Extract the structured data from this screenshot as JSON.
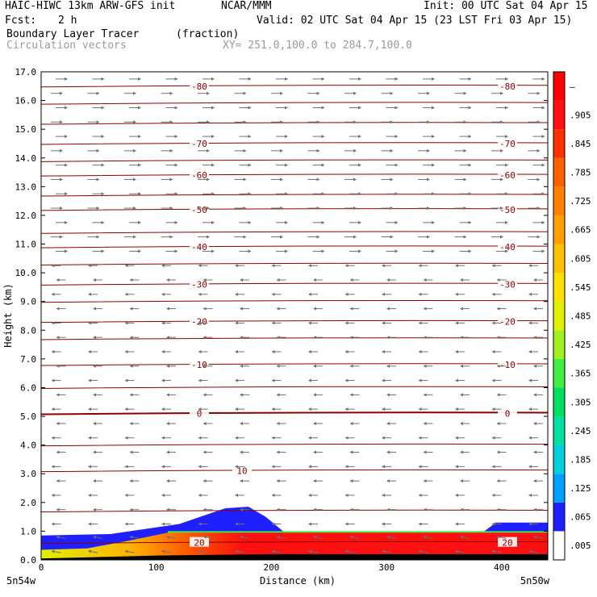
{
  "header": {
    "model": "HAIC-HIWC 13km ARW-GFS init",
    "org": "NCAR/MMM",
    "init": "Init: 00 UTC Sat 04 Apr 15",
    "fcst_label": "Fcst:",
    "fcst_value": "2 h",
    "valid": "Valid: 02 UTC Sat 04 Apr 15 (23 LST Fri 03 Apr 15)",
    "field": "Boundary Layer Tracer",
    "field_units": "(fraction)",
    "overlay": "Circulation vectors",
    "cross_section": "XY= 251.0,100.0 to 284.7,100.0"
  },
  "chart_data": {
    "type": "heatmap",
    "xlabel": "Distance (km)",
    "ylabel": "Height (km)",
    "xlim": [
      0,
      440
    ],
    "ylim": [
      0,
      17
    ],
    "x_ticks": [
      0,
      100,
      200,
      300,
      400
    ],
    "y_ticks": [
      "0.0",
      "1.0",
      "2.0",
      "3.0",
      "4.0",
      "5.0",
      "6.0",
      "7.0",
      "8.0",
      "9.0",
      "10.0",
      "11.0",
      "12.0",
      "13.0",
      "14.0",
      "15.0",
      "16.0",
      "17.0"
    ],
    "x_end_labels": {
      "left": "5n54w",
      "right": "5n50w"
    },
    "colorbar": {
      "labels": [
        ".005",
        ".065",
        ".125",
        ".185",
        ".245",
        ".305",
        ".365",
        ".425",
        ".485",
        ".545",
        ".605",
        ".665",
        ".725",
        ".785",
        ".845",
        ".905",
        "–"
      ],
      "colors": [
        "#ffffff",
        "#2020ff",
        "#00a0ff",
        "#00d0e0",
        "#00e0a0",
        "#00e060",
        "#40f040",
        "#a0f020",
        "#e0f000",
        "#ffe000",
        "#ffc000",
        "#ffa000",
        "#ff8000",
        "#ff6000",
        "#ff3000",
        "#ff1010",
        "#ff0000"
      ]
    },
    "contours": [
      {
        "label": "-80",
        "height_km": 16.5
      },
      {
        "label": "-70",
        "height_km": 14.5
      },
      {
        "label": "-60",
        "height_km": 13.4
      },
      {
        "label": "-50",
        "height_km": 12.2
      },
      {
        "label": "-40",
        "height_km": 10.9
      },
      {
        "label": "-30",
        "height_km": 9.6
      },
      {
        "label": "-20",
        "height_km": 8.3
      },
      {
        "label": "-10",
        "height_km": 6.8
      },
      {
        "label": "0",
        "height_km": 5.1
      },
      {
        "label": "10",
        "height_km": 3.1
      },
      {
        "label": "20",
        "height_km": 0.6
      }
    ],
    "unlabeled_isotherm_heights_km": [
      15.9,
      15.2,
      13.9,
      12.7,
      11.4,
      10.3,
      9.0,
      7.7,
      6.0,
      4.0,
      1.7
    ],
    "terrain_km": [
      [
        0,
        0.05
      ],
      [
        50,
        0.1
      ],
      [
        100,
        0.15
      ],
      [
        200,
        0.2
      ],
      [
        300,
        0.2
      ],
      [
        440,
        0.2
      ]
    ],
    "tracer_fields": [
      {
        "name_color": "#ff0000",
        "top_km": [
          [
            0,
            0.35
          ],
          [
            40,
            0.4
          ],
          [
            80,
            0.7
          ],
          [
            110,
            0.95
          ],
          [
            200,
            0.95
          ],
          [
            440,
            0.95
          ]
        ]
      },
      {
        "name_color": "#40f040",
        "top_km": [
          [
            110,
            1.0
          ],
          [
            440,
            1.0
          ]
        ]
      },
      {
        "name_color": "#2020ff",
        "top_km": [
          [
            0,
            0.85
          ],
          [
            60,
            0.9
          ],
          [
            120,
            1.25
          ],
          [
            160,
            1.8
          ],
          [
            180,
            1.85
          ],
          [
            195,
            1.5
          ],
          [
            210,
            1.0
          ],
          [
            230,
            0.95
          ],
          [
            385,
            1.0
          ],
          [
            395,
            1.3
          ],
          [
            410,
            1.3
          ],
          [
            440,
            1.3
          ]
        ]
      }
    ],
    "wind_vectors": {
      "upper_direction": "east",
      "lower_direction": "west",
      "reversal_height_km": 10.5
    }
  }
}
